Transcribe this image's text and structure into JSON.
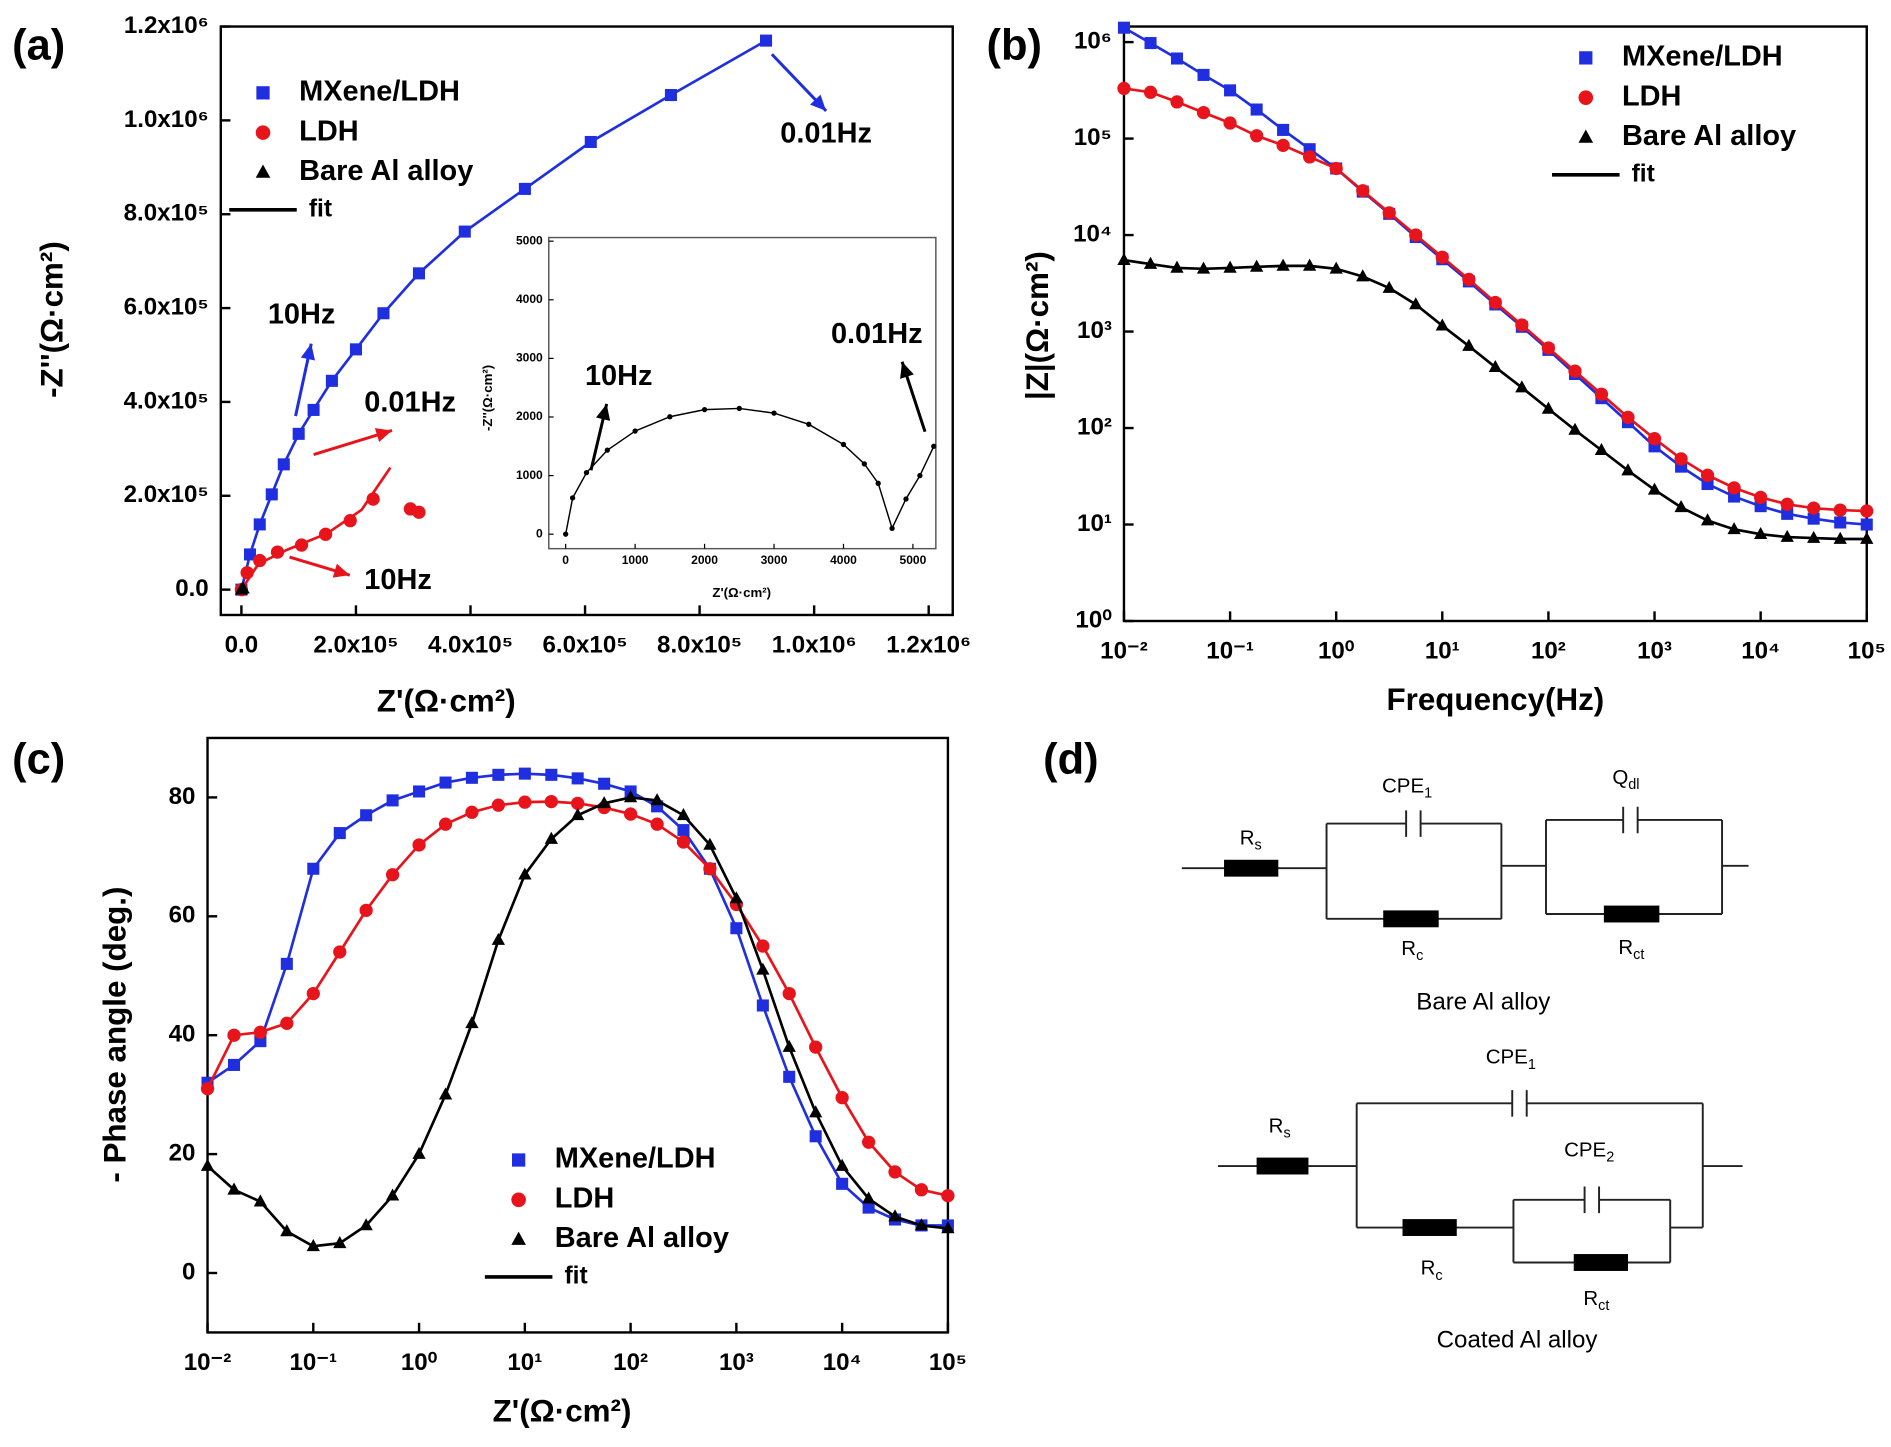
{
  "chart_data": [
    {
      "type": "scatter",
      "panel_label": "(a)",
      "x_label": "Z'(Ω·cm²)",
      "y_label": "-Z''(Ω·cm²)",
      "xlim": [
        -36000,
        1242000
      ],
      "ylim": [
        -54000,
        1200000
      ],
      "xticks": [
        {
          "value": 0,
          "label": "0.0"
        },
        {
          "value": 200000,
          "label": "2.0x10⁵"
        },
        {
          "value": 400000,
          "label": "4.0x10⁵"
        },
        {
          "value": 600000,
          "label": "6.0x10⁵"
        },
        {
          "value": 800000,
          "label": "8.0x10⁵"
        },
        {
          "value": 1000000,
          "label": "1.0x10⁶"
        },
        {
          "value": 1200000,
          "label": "1.2x10⁶"
        }
      ],
      "yticks": [
        {
          "value": 0,
          "label": "0.0"
        },
        {
          "value": 200000,
          "label": "2.0x10⁵"
        },
        {
          "value": 400000,
          "label": "4.0x10⁵"
        },
        {
          "value": 600000,
          "label": "6.0x10⁵"
        },
        {
          "value": 800000,
          "label": "8.0x10⁵"
        },
        {
          "value": 1000000,
          "label": "1.0x10⁶"
        },
        {
          "value": 1200000,
          "label": "1.2x10⁶"
        }
      ],
      "legend": "upper left",
      "fit_label": "fit",
      "series": [
        {
          "name": "MXene/LDH",
          "color": "#1f2fe0",
          "marker": "square",
          "x": [
            0,
            15000,
            32000,
            53000,
            74000,
            100000,
            126000,
            158000,
            200000,
            248000,
            310000,
            390000,
            495000,
            610000,
            750000,
            916000
          ],
          "values": [
            0,
            75000,
            139000,
            203000,
            267000,
            332000,
            383000,
            445000,
            512000,
            589000,
            674000,
            763000,
            854000,
            954000,
            1054000,
            1170000
          ]
        },
        {
          "name": "LDH",
          "color": "#e8141b",
          "marker": "circle",
          "x": [
            0,
            10000,
            32000,
            63000,
            105000,
            147000,
            190000,
            230000,
            295000,
            310000
          ],
          "values": [
            0,
            36000,
            62000,
            80000,
            95000,
            118000,
            147000,
            193000,
            172000,
            165000
          ],
          "fit_x": [
            0,
            30000,
            80000,
            150000,
            210000,
            260000
          ],
          "fit_values": [
            0,
            55000,
            85000,
            120000,
            170000,
            260000
          ]
        },
        {
          "name": "Bare Al alloy",
          "color": "#000000",
          "marker": "triangle",
          "x": [
            0,
            3000
          ],
          "values": [
            0,
            2000
          ]
        }
      ],
      "annotations": [
        {
          "text": "0.01Hz",
          "color": "#1f2fe0"
        },
        {
          "text": "10Hz",
          "color": "#1f2fe0"
        },
        {
          "text": "0.01Hz",
          "color": "#e8141b"
        },
        {
          "text": "10Hz",
          "color": "#e8141b"
        }
      ],
      "inset": {
        "type": "scatter",
        "x_label": "Z'(Ω·cm²)",
        "y_label": "-Z''(Ω·cm²)",
        "xlim": [
          -243,
          5330
        ],
        "ylim": [
          -247,
          5062
        ],
        "xticks": [
          0,
          1000,
          2000,
          3000,
          4000,
          5000
        ],
        "yticks": [
          0,
          1000,
          2000,
          3000,
          4000,
          5000
        ],
        "series": [
          {
            "color": "#000000",
            "marker": "dot",
            "x": [
              0,
              100,
              300,
              600,
              1000,
              1500,
              2000,
              2500,
              3000,
              3500,
              4000,
              4300,
              4500,
              4700,
              4900,
              5100,
              5300
            ],
            "values": [
              0,
              620,
              1050,
              1434,
              1760,
              2004,
              2126,
              2146,
              2066,
              1875,
              1531,
              1199,
              868,
              100,
              600,
              1000,
              1500
            ]
          }
        ],
        "annotations": [
          {
            "text": "10Hz",
            "color": "#000000"
          },
          {
            "text": "0.01Hz",
            "color": "#000000"
          }
        ]
      }
    },
    {
      "type": "line",
      "panel_label": "(b)",
      "x_label": "Frequency(Hz)",
      "y_label": "|Z|(Ω·cm²)",
      "log_x": true,
      "log_y": true,
      "xlim": [
        0.01,
        100000
      ],
      "ylim": [
        1,
        1450000
      ],
      "xticks": [
        {
          "value": 0.01,
          "label": "10⁻²"
        },
        {
          "value": 0.1,
          "label": "10⁻¹"
        },
        {
          "value": 1,
          "label": "10⁰"
        },
        {
          "value": 10,
          "label": "10¹"
        },
        {
          "value": 100,
          "label": "10²"
        },
        {
          "value": 1000,
          "label": "10³"
        },
        {
          "value": 10000,
          "label": "10⁴"
        },
        {
          "value": 100000,
          "label": "10⁵"
        }
      ],
      "yticks": [
        {
          "value": 1,
          "label": "10⁰"
        },
        {
          "value": 10,
          "label": "10¹"
        },
        {
          "value": 100,
          "label": "10²"
        },
        {
          "value": 1000,
          "label": "10³"
        },
        {
          "value": 10000,
          "label": "10⁴"
        },
        {
          "value": 100000,
          "label": "10⁵"
        },
        {
          "value": 1000000,
          "label": "10⁶"
        }
      ],
      "legend": "upper right",
      "fit_label": "fit",
      "x": [
        0.01,
        0.0178,
        0.0316,
        0.0562,
        0.1,
        0.178,
        0.316,
        0.562,
        1,
        1.78,
        3.16,
        5.62,
        10,
        17.8,
        31.6,
        56.2,
        100,
        178,
        316,
        562,
        1000,
        1780,
        3160,
        5620,
        10000,
        17800,
        31600,
        56200,
        100000
      ],
      "series": [
        {
          "name": "MXene/LDH",
          "color": "#1f2fe0",
          "marker": "square",
          "values": [
            1410000,
            977000,
            676000,
            457000,
            316000,
            200000,
            123000,
            77600,
            49000,
            28200,
            16600,
            9550,
            5620,
            3310,
            1910,
            1120,
            646,
            363,
            204,
            115,
            64.6,
            39.8,
            26.3,
            19.5,
            15.5,
            12.9,
            11.5,
            10.5,
            10
          ]
        },
        {
          "name": "LDH",
          "color": "#e8141b",
          "marker": "circle",
          "values": [
            331000,
            302000,
            240000,
            186000,
            145000,
            107000,
            85100,
            64600,
            49000,
            28800,
            17000,
            10000,
            5890,
            3470,
            2000,
            1170,
            676,
            389,
            224,
            129,
            77.6,
            47.9,
            32.4,
            24.0,
            19.1,
            16.2,
            14.8,
            14.1,
            13.8
          ]
        },
        {
          "name": "Bare Al alloy",
          "color": "#000000",
          "marker": "triangle",
          "values": [
            5500,
            5010,
            4570,
            4470,
            4570,
            4680,
            4790,
            4790,
            4470,
            3720,
            2820,
            1910,
            1150,
            708,
            427,
            263,
            158,
            95.5,
            58.9,
            36.3,
            22.9,
            15.1,
            11.0,
            8.91,
            7.94,
            7.41,
            7.24,
            7.08,
            7.08
          ]
        }
      ]
    },
    {
      "type": "line",
      "panel_label": "(c)",
      "x_label": "Z'(Ω·cm²)",
      "y_label": "- Phase angle (deg.)",
      "log_x": true,
      "xlim": [
        0.01,
        100000
      ],
      "ylim": [
        -10,
        90
      ],
      "xticks": [
        {
          "value": 0.01,
          "label": "10⁻²"
        },
        {
          "value": 0.1,
          "label": "10⁻¹"
        },
        {
          "value": 1,
          "label": "10⁰"
        },
        {
          "value": 10,
          "label": "10¹"
        },
        {
          "value": 100,
          "label": "10²"
        },
        {
          "value": 1000,
          "label": "10³"
        },
        {
          "value": 10000,
          "label": "10⁴"
        },
        {
          "value": 100000,
          "label": "10⁵"
        }
      ],
      "yticks": [
        0,
        20,
        40,
        60,
        80
      ],
      "legend": "lower center",
      "fit_label": "fit",
      "x": [
        0.01,
        0.0178,
        0.0316,
        0.0562,
        0.1,
        0.178,
        0.316,
        0.562,
        1,
        1.78,
        3.16,
        5.62,
        10,
        17.8,
        31.6,
        56.2,
        100,
        178,
        316,
        562,
        1000,
        1780,
        3160,
        5620,
        10000,
        17800,
        31600,
        56200,
        100000
      ],
      "series": [
        {
          "name": "MXene/LDH",
          "color": "#1f2fe0",
          "marker": "square",
          "values": [
            32,
            35,
            39,
            52,
            68,
            74,
            77,
            79.5,
            81,
            82.5,
            83.3,
            83.8,
            84,
            83.8,
            83.2,
            82.3,
            81,
            78.5,
            74.5,
            68,
            58,
            45,
            33,
            23,
            15,
            11,
            9,
            8,
            8
          ]
        },
        {
          "name": "LDH",
          "color": "#e8141b",
          "marker": "circle",
          "values": [
            31,
            40,
            40.5,
            42,
            47,
            54,
            61,
            67,
            72,
            75.5,
            77.5,
            78.7,
            79.2,
            79.3,
            79,
            78.3,
            77.2,
            75.5,
            72.5,
            68,
            62,
            55,
            47,
            38,
            29.5,
            22,
            17,
            14,
            13
          ]
        },
        {
          "name": "Bare Al alloy",
          "color": "#000000",
          "marker": "triangle",
          "values": [
            18,
            14,
            12,
            7,
            4.5,
            5,
            8,
            13,
            20,
            30,
            42,
            56,
            67,
            73,
            77,
            79,
            80,
            79.5,
            77,
            72,
            63,
            51,
            38,
            27,
            18,
            12.5,
            9.5,
            8,
            7.5
          ]
        }
      ]
    }
  ],
  "diagram": {
    "panel_label": "(d)",
    "circuits": [
      {
        "caption": "Bare Al alloy",
        "elements": [
          {
            "symbol": "R",
            "sub": "s"
          },
          {
            "symbol": "CPE",
            "sub": "1"
          },
          {
            "symbol": "R",
            "sub": "c"
          },
          {
            "symbol": "Q",
            "sub": "dl"
          },
          {
            "symbol": "R",
            "sub": "ct"
          }
        ]
      },
      {
        "caption": "Coated Al alloy",
        "elements": [
          {
            "symbol": "R",
            "sub": "s"
          },
          {
            "symbol": "CPE",
            "sub": "1"
          },
          {
            "symbol": "R",
            "sub": "c"
          },
          {
            "symbol": "CPE",
            "sub": "2"
          },
          {
            "symbol": "R",
            "sub": "ct"
          }
        ]
      }
    ]
  }
}
